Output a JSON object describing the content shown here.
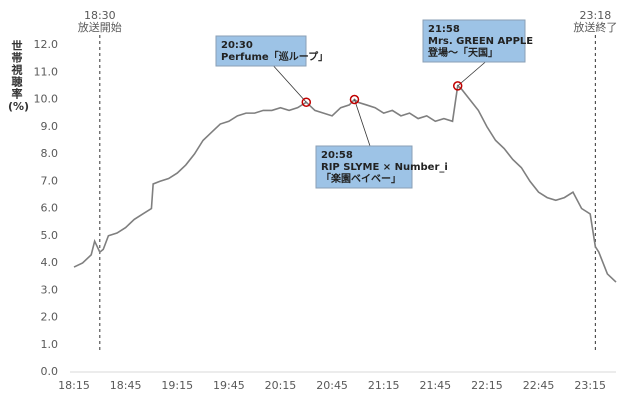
{
  "chart_data": {
    "type": "line",
    "y_label": "世帯視聴率",
    "y_unit": "(%)",
    "color": "#7f7f7f",
    "x": [
      1095,
      1100,
      1105,
      1107,
      1110,
      1112,
      1115,
      1120,
      1125,
      1130,
      1135,
      1140,
      1141,
      1145,
      1150,
      1155,
      1160,
      1165,
      1170,
      1175,
      1180,
      1185,
      1190,
      1195,
      1200,
      1205,
      1210,
      1215,
      1220,
      1225,
      1230,
      1235,
      1240,
      1245,
      1250,
      1255,
      1258,
      1260,
      1265,
      1270,
      1275,
      1280,
      1285,
      1290,
      1295,
      1300,
      1305,
      1310,
      1315,
      1318,
      1320,
      1325,
      1330,
      1335,
      1340,
      1345,
      1350,
      1355,
      1360,
      1365,
      1370,
      1375,
      1380,
      1385,
      1390,
      1395,
      1398,
      1400,
      1405,
      1410
    ],
    "values": [
      3.85,
      4.0,
      4.3,
      4.8,
      4.4,
      4.5,
      5.0,
      5.1,
      5.3,
      5.6,
      5.8,
      6.0,
      6.9,
      7.0,
      7.1,
      7.3,
      7.6,
      8.0,
      8.5,
      8.8,
      9.1,
      9.2,
      9.4,
      9.5,
      9.5,
      9.6,
      9.6,
      9.7,
      9.6,
      9.7,
      9.9,
      9.6,
      9.5,
      9.4,
      9.7,
      9.8,
      10.0,
      9.9,
      9.8,
      9.7,
      9.5,
      9.6,
      9.4,
      9.5,
      9.3,
      9.4,
      9.2,
      9.3,
      9.2,
      10.5,
      10.4,
      10.0,
      9.6,
      9.0,
      8.5,
      8.2,
      7.8,
      7.5,
      7.0,
      6.6,
      6.4,
      6.3,
      6.4,
      6.6,
      6.0,
      5.8,
      4.6,
      4.4,
      3.6,
      3.3
    ],
    "xlim": [
      1095,
      1410
    ],
    "xticks": [
      {
        "value": 1095,
        "label": "18:15"
      },
      {
        "value": 1125,
        "label": "18:45"
      },
      {
        "value": 1155,
        "label": "19:15"
      },
      {
        "value": 1185,
        "label": "19:45"
      },
      {
        "value": 1215,
        "label": "20:15"
      },
      {
        "value": 1245,
        "label": "20:45"
      },
      {
        "value": 1275,
        "label": "21:15"
      },
      {
        "value": 1305,
        "label": "21:45"
      },
      {
        "value": 1335,
        "label": "22:15"
      },
      {
        "value": 1365,
        "label": "22:45"
      },
      {
        "value": 1395,
        "label": "23:15"
      }
    ],
    "ylim": [
      0,
      12
    ],
    "yticks": [
      {
        "value": 0,
        "label": "0.0"
      },
      {
        "value": 1,
        "label": "1.0"
      },
      {
        "value": 2,
        "label": "2.0"
      },
      {
        "value": 3,
        "label": "3.0"
      },
      {
        "value": 4,
        "label": "4.0"
      },
      {
        "value": 5,
        "label": "5.0"
      },
      {
        "value": 6,
        "label": "6.0"
      },
      {
        "value": 7,
        "label": "7.0"
      },
      {
        "value": 8,
        "label": "8.0"
      },
      {
        "value": 9,
        "label": "9.0"
      },
      {
        "value": 10,
        "label": "10.0"
      },
      {
        "value": 11,
        "label": "11.0"
      },
      {
        "value": 12,
        "label": "12.0"
      }
    ],
    "events": [
      {
        "x": 1110,
        "lines": [
          "18:30",
          "放送開始"
        ]
      },
      {
        "x": 1398,
        "lines": [
          "23:18",
          "放送終了"
        ]
      }
    ],
    "annotations": [
      {
        "x": 1230,
        "y": 9.9,
        "lines": [
          "20:30",
          "Perfume「巡ループ」"
        ]
      },
      {
        "x": 1258,
        "y": 10.0,
        "lines": [
          "20:58",
          "RIP SLYME × Number_i",
          "「楽園ベイベー」"
        ]
      },
      {
        "x": 1318,
        "y": 10.5,
        "lines": [
          "21:58",
          "Mrs. GREEN APPLE",
          "登場〜「天国」"
        ]
      }
    ]
  }
}
